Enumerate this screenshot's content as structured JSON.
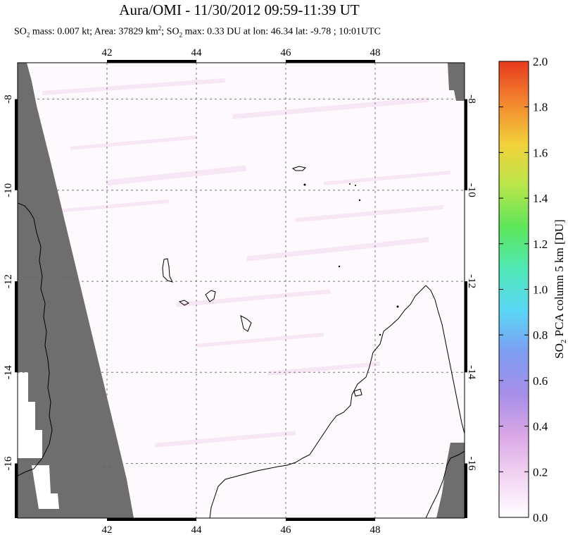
{
  "chart_data": {
    "type": "heatmap",
    "title": "Aura/OMI - 11/30/2012 09:59-11:39 UT",
    "subtitle": {
      "prefix": "SO",
      "prefix_sub": "2",
      "mass": " mass: 0.007 kt; Area: 37829 km",
      "area_sup": "2",
      "sep": "; SO",
      "max_sub": "2",
      "rest": " max: 0.33 DU at lon: 46.34 lat: -9.78 ; 10:01UTC"
    },
    "x_axis": {
      "ticks": [
        42,
        44,
        46,
        48
      ],
      "range": [
        40.0,
        50.0
      ]
    },
    "y_axis": {
      "ticks": [
        -8,
        -10,
        -12,
        -14,
        -16
      ],
      "range": [
        -17.2,
        -7.2
      ]
    },
    "grid": true,
    "colorbar": {
      "label": "SO2 PCA column 5 km [DU]",
      "label_parts": {
        "a": "SO",
        "sub": "2",
        "b": " PCA column 5 km [DU]"
      },
      "ticks": [
        "0.0",
        "0.2",
        "0.4",
        "0.6",
        "0.8",
        "1.0",
        "1.2",
        "1.4",
        "1.6",
        "1.8",
        "2.0"
      ],
      "range": [
        0.0,
        2.0
      ],
      "colors": [
        "#ffffff",
        "#f2d4f2",
        "#d9a6e6",
        "#a48ee8",
        "#7d9ef2",
        "#5ad7f5",
        "#4fe8b5",
        "#5de65a",
        "#b8e64a",
        "#f2d13a",
        "#f2872e",
        "#e83a1e"
      ]
    },
    "no_data_color": "#6e6e6e"
  }
}
